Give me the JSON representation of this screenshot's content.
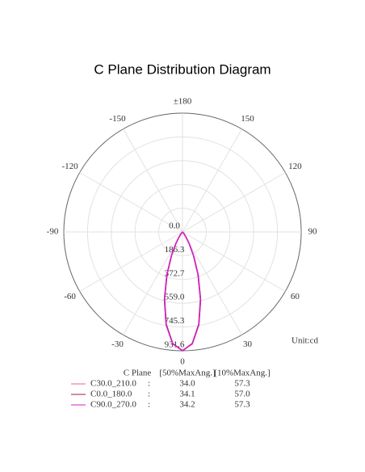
{
  "chart_data": {
    "type": "polar",
    "title": "C Plane Distribution Diagram",
    "unit_label": "Unit:cd",
    "angles": [
      -50,
      -45,
      -40,
      -35,
      -30,
      -25,
      -20,
      -15,
      -10,
      -5,
      0,
      5,
      10,
      15,
      20,
      25,
      30,
      35,
      40,
      45,
      50
    ],
    "rlim": [
      0,
      931.6
    ],
    "rticks": [
      {
        "value": 0,
        "label": "0.0"
      },
      186.3,
      372.7,
      {
        "value": 559,
        "label": "559.0"
      },
      745.3,
      931.6
    ],
    "thetaticks": [
      {
        "value": 180,
        "label": "±180"
      },
      -150,
      150,
      -120,
      120,
      -90,
      90,
      -60,
      60,
      -30,
      30,
      0
    ],
    "legend_header": [
      "C Plane",
      "[50%MaxAng.]",
      "[10%MaxAng.]"
    ],
    "series": [
      {
        "name": "C30.0_210.0",
        "color": "#e06878",
        "value_color": "#d0283c",
        "angle_50": "34.0",
        "angle_10": "57.3",
        "values": [
          0,
          5,
          16,
          44,
          104,
          208,
          360,
          548,
          738,
          880,
          931,
          880,
          738,
          548,
          360,
          208,
          104,
          44,
          16,
          5,
          0
        ]
      },
      {
        "name": "C0.0_180.0",
        "color": "#8c2050",
        "value_color": "#7a1838",
        "angle_50": "34.1",
        "angle_10": "57.0",
        "values": [
          0,
          4,
          15,
          42,
          100,
          203,
          355,
          544,
          735,
          878,
          931.6,
          878,
          735,
          544,
          355,
          203,
          100,
          42,
          15,
          4,
          0
        ]
      },
      {
        "name": "C90.0_270.0",
        "color": "#d81ec8",
        "value_color": "#d020d0",
        "angle_50": "34.2",
        "angle_10": "57.3",
        "values": [
          0,
          5,
          16,
          45,
          106,
          210,
          362,
          550,
          740,
          881,
          930,
          881,
          740,
          550,
          362,
          210,
          106,
          45,
          16,
          5,
          0
        ]
      }
    ]
  }
}
